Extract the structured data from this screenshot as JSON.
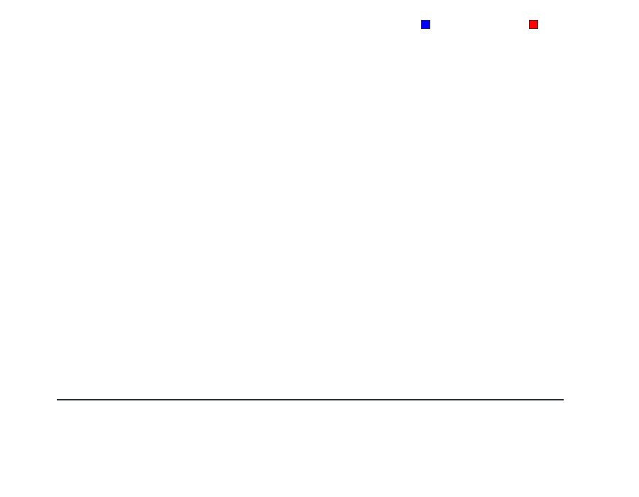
{
  "chart_data": {
    "type": "bar",
    "title": "",
    "xlabel": "",
    "ylabel": "",
    "categories": [],
    "series": [
      {
        "name": "",
        "color": "#0000ff",
        "values": []
      },
      {
        "name": "",
        "color": "#ff0000",
        "values": []
      }
    ],
    "grid": false,
    "legend_placement": "top-right",
    "axis_color": "#2b2f3a"
  }
}
